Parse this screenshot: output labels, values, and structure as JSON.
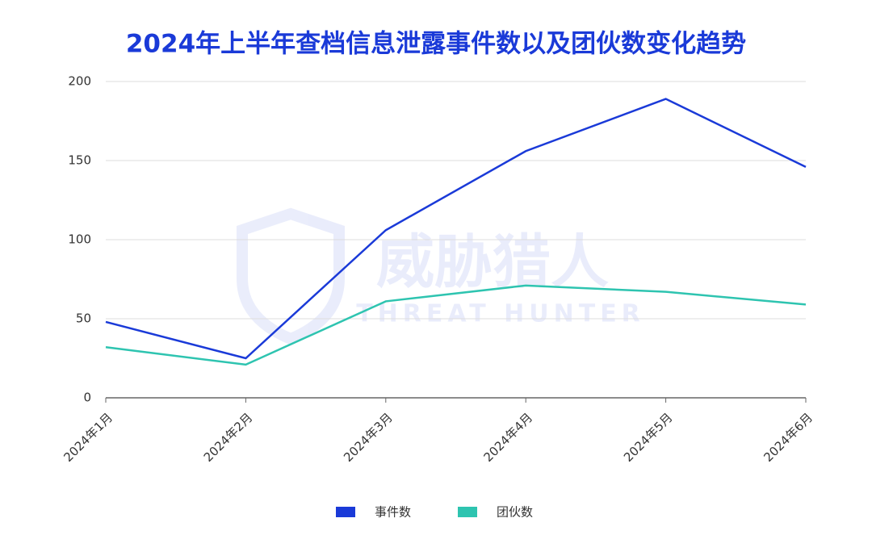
{
  "chart_data": {
    "type": "line",
    "title": "2024年上半年查档信息泄露事件数以及团伙数变化趋势",
    "watermark": [
      "威胁猎人",
      "THREAT HUNTER"
    ],
    "categories": [
      "2024年1月",
      "2024年2月",
      "2024年3月",
      "2024年4月",
      "2024年5月",
      "2024年6月"
    ],
    "series": [
      {
        "name": "事件数",
        "color": "#1a3ad8",
        "values": [
          48,
          25,
          106,
          156,
          189,
          146
        ]
      },
      {
        "name": "团伙数",
        "color": "#2ec4b0",
        "values": [
          32,
          21,
          61,
          71,
          67,
          59
        ]
      }
    ],
    "ylim": [
      0,
      200
    ],
    "yticks": [
      0,
      50,
      100,
      150,
      200
    ],
    "grid": true,
    "legend": "bottom"
  }
}
